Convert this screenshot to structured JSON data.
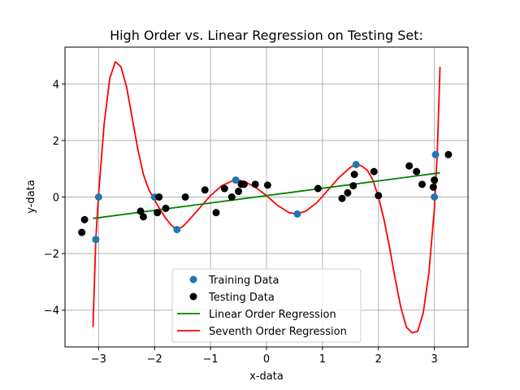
{
  "chart_data": {
    "type": "scatter",
    "title": "High Order vs. Linear Regression on Testing Set:",
    "xlabel": "x-data",
    "ylabel": "y-data",
    "xlim": [
      -3.6,
      3.6
    ],
    "ylim": [
      -5.3,
      5.3
    ],
    "xticks": [
      -3,
      -2,
      -1,
      0,
      1,
      2,
      3
    ],
    "yticks": [
      -4,
      -2,
      0,
      2,
      4
    ],
    "xtick_labels": [
      "−3",
      "−2",
      "−1",
      "0",
      "1",
      "2",
      "3"
    ],
    "ytick_labels": [
      "−4",
      "−2",
      "0",
      "2",
      "4"
    ],
    "grid": true,
    "legend_position": "lower-center",
    "series": [
      {
        "name": "Training Data",
        "kind": "scatter",
        "color": "#1f77b4",
        "points": [
          [
            -3.05,
            -1.5
          ],
          [
            -3.0,
            0.0
          ],
          [
            -2.0,
            0.0
          ],
          [
            -1.6,
            -1.15
          ],
          [
            -0.55,
            0.6
          ],
          [
            0.55,
            -0.6
          ],
          [
            1.6,
            1.15
          ],
          [
            3.0,
            0.0
          ],
          [
            3.02,
            1.5
          ]
        ]
      },
      {
        "name": "Testing Data",
        "kind": "scatter",
        "color": "#000000",
        "points": [
          [
            -3.3,
            -1.25
          ],
          [
            -3.25,
            -0.8
          ],
          [
            -2.25,
            -0.5
          ],
          [
            -2.2,
            -0.7
          ],
          [
            -1.95,
            -0.55
          ],
          [
            -1.92,
            0.0
          ],
          [
            -1.8,
            -0.4
          ],
          [
            -1.45,
            0.0
          ],
          [
            -1.1,
            0.25
          ],
          [
            -0.9,
            -0.55
          ],
          [
            -0.75,
            0.3
          ],
          [
            -0.62,
            0.0
          ],
          [
            -0.5,
            0.2
          ],
          [
            -0.45,
            0.45
          ],
          [
            -0.4,
            0.45
          ],
          [
            -0.2,
            0.45
          ],
          [
            0.02,
            0.42
          ],
          [
            0.92,
            0.3
          ],
          [
            1.35,
            -0.05
          ],
          [
            1.45,
            0.15
          ],
          [
            1.55,
            0.4
          ],
          [
            1.57,
            0.8
          ],
          [
            1.92,
            0.9
          ],
          [
            2.0,
            0.05
          ],
          [
            2.55,
            1.1
          ],
          [
            2.68,
            0.9
          ],
          [
            2.78,
            0.45
          ],
          [
            2.98,
            0.35
          ],
          [
            3.0,
            0.6
          ],
          [
            3.25,
            1.5
          ]
        ]
      },
      {
        "name": "Linear Order Regression",
        "kind": "line",
        "color": "#008000",
        "x_range": [
          -3.1,
          3.1
        ],
        "intercept": 0.05,
        "slope": 0.26
      },
      {
        "name": "Seventh Order Regression",
        "kind": "line",
        "color": "#ff0000",
        "x_range": [
          -3.1,
          3.1
        ],
        "points": [
          [
            -3.1,
            -4.6
          ],
          [
            -3.05,
            -1.5
          ],
          [
            -3.0,
            0.1
          ],
          [
            -2.9,
            2.6
          ],
          [
            -2.8,
            4.2
          ],
          [
            -2.7,
            4.78
          ],
          [
            -2.6,
            4.6
          ],
          [
            -2.5,
            3.9
          ],
          [
            -2.4,
            2.8
          ],
          [
            -2.3,
            1.7
          ],
          [
            -2.2,
            0.8
          ],
          [
            -2.1,
            0.25
          ],
          [
            -2.0,
            -0.1
          ],
          [
            -1.9,
            -0.45
          ],
          [
            -1.8,
            -0.75
          ],
          [
            -1.7,
            -1.0
          ],
          [
            -1.6,
            -1.15
          ],
          [
            -1.5,
            -1.05
          ],
          [
            -1.4,
            -0.85
          ],
          [
            -1.2,
            -0.4
          ],
          [
            -1.0,
            0.05
          ],
          [
            -0.8,
            0.4
          ],
          [
            -0.6,
            0.58
          ],
          [
            -0.5,
            0.6
          ],
          [
            -0.4,
            0.55
          ],
          [
            -0.2,
            0.35
          ],
          [
            0.0,
            0.05
          ],
          [
            0.2,
            -0.3
          ],
          [
            0.4,
            -0.55
          ],
          [
            0.55,
            -0.6
          ],
          [
            0.7,
            -0.5
          ],
          [
            0.9,
            -0.2
          ],
          [
            1.1,
            0.25
          ],
          [
            1.3,
            0.7
          ],
          [
            1.5,
            1.05
          ],
          [
            1.6,
            1.15
          ],
          [
            1.7,
            1.1
          ],
          [
            1.8,
            0.95
          ],
          [
            1.9,
            0.6
          ],
          [
            2.0,
            0.0
          ],
          [
            2.1,
            -0.8
          ],
          [
            2.2,
            -1.8
          ],
          [
            2.3,
            -2.9
          ],
          [
            2.4,
            -3.9
          ],
          [
            2.5,
            -4.6
          ],
          [
            2.6,
            -4.8
          ],
          [
            2.7,
            -4.75
          ],
          [
            2.8,
            -4.1
          ],
          [
            2.9,
            -2.7
          ],
          [
            3.0,
            -0.4
          ],
          [
            3.05,
            1.5
          ],
          [
            3.1,
            4.6
          ]
        ]
      }
    ]
  }
}
